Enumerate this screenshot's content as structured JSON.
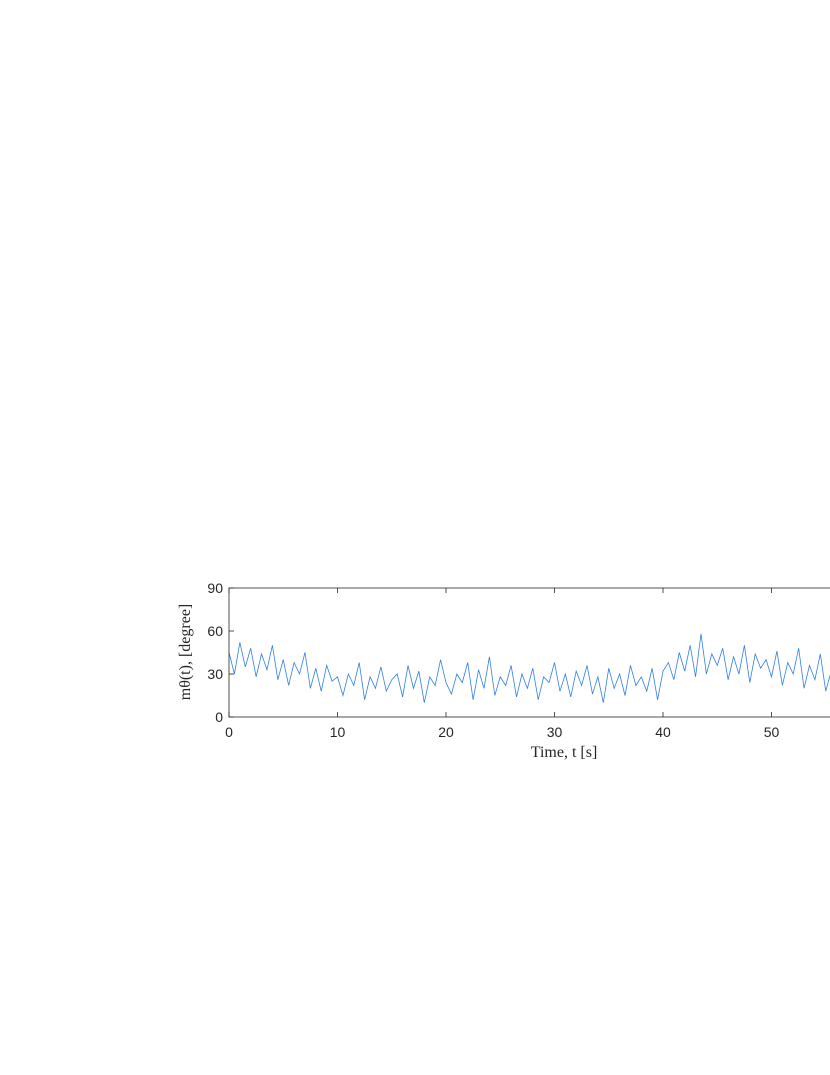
{
  "chart_data": {
    "type": "line",
    "x_label": "Time,  t  [s]",
    "y_label": "mθ(t),  [degree]",
    "x": [
      0,
      0.5,
      1,
      1.5,
      2,
      2.5,
      3,
      3.5,
      4,
      4.5,
      5,
      5.5,
      6,
      6.5,
      7,
      7.5,
      8,
      8.5,
      9,
      9.5,
      10,
      10.5,
      11,
      11.5,
      12,
      12.5,
      13,
      13.5,
      14,
      14.5,
      15,
      15.5,
      16,
      16.5,
      17,
      17.5,
      18,
      18.5,
      19,
      19.5,
      20,
      20.5,
      21,
      21.5,
      22,
      22.5,
      23,
      23.5,
      24,
      24.5,
      25,
      25.5,
      26,
      26.5,
      27,
      27.5,
      28,
      28.5,
      29,
      29.5,
      30,
      30.5,
      31,
      31.5,
      32,
      32.5,
      33,
      33.5,
      34,
      34.5,
      35,
      35.5,
      36,
      36.5,
      37,
      37.5,
      38,
      38.5,
      39,
      39.5,
      40,
      40.5,
      41,
      41.5,
      42,
      42.5,
      43,
      43.5,
      44,
      44.5,
      45,
      45.5,
      46,
      46.5,
      47,
      47.5,
      48,
      48.5,
      49,
      49.5,
      50,
      50.5,
      51,
      51.5,
      52,
      52.5,
      53,
      53.5,
      54,
      54.5,
      55,
      55.5
    ],
    "series": [
      {
        "color": "#2f7fe6",
        "values": [
          45,
          30,
          52,
          35,
          48,
          28,
          44,
          33,
          50,
          26,
          40,
          22,
          38,
          30,
          45,
          20,
          34,
          18,
          36,
          25,
          28,
          15,
          30,
          22,
          38,
          12,
          28,
          20,
          35,
          18,
          26,
          30,
          14,
          36,
          20,
          32,
          10,
          28,
          22,
          40,
          24,
          16,
          30,
          24,
          38,
          12,
          33,
          20,
          42,
          15,
          28,
          22,
          36,
          14,
          30,
          20,
          34,
          12,
          28,
          24,
          38,
          18,
          30,
          14,
          32,
          22,
          36,
          16,
          28,
          10,
          34,
          20,
          30,
          15,
          36,
          22,
          28,
          18,
          34,
          12,
          32,
          38,
          26,
          45,
          32,
          50,
          28,
          58,
          30,
          44,
          36,
          48,
          26,
          42,
          30,
          50,
          24,
          44,
          34,
          40,
          28,
          46,
          22,
          38,
          30,
          48,
          20,
          36,
          26,
          44,
          18,
          32
        ]
      }
    ],
    "xlim": [
      0,
      60
    ],
    "ylim": [
      0,
      90
    ],
    "xticks": [
      0,
      10,
      20,
      30,
      40,
      50
    ],
    "yticks": [
      0,
      30,
      60,
      90
    ]
  }
}
